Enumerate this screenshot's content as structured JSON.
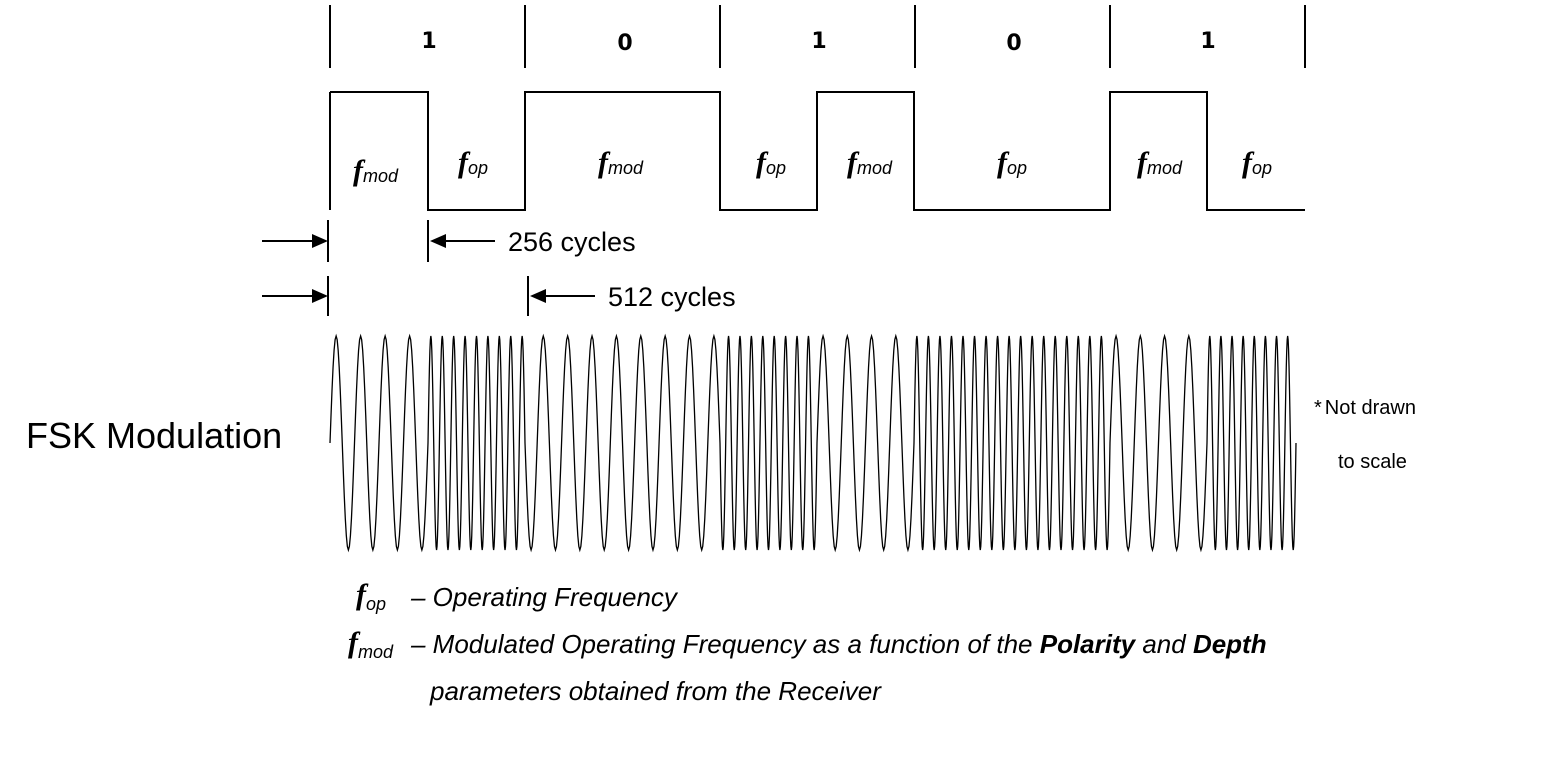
{
  "bits": [
    "1",
    "0",
    "1",
    "0",
    "1"
  ],
  "bit_sequence_levels": [
    1,
    1,
    0,
    1,
    0,
    1,
    0,
    0,
    1,
    0
  ],
  "segments": [
    {
      "f": "f",
      "sub": "mod"
    },
    {
      "f": "f",
      "sub": "op"
    },
    {
      "f": "f",
      "sub": "mod"
    },
    {
      "f": "f",
      "sub": "op"
    },
    {
      "f": "f",
      "sub": "mod"
    },
    {
      "f": "f",
      "sub": "op"
    },
    {
      "f": "f",
      "sub": "mod"
    },
    {
      "f": "f",
      "sub": "op"
    }
  ],
  "timing": {
    "short_label": "256 cycles",
    "long_label": "512 cycles"
  },
  "title": "FSK Modulation",
  "note": {
    "star": "*",
    "line1": "Not drawn",
    "line2": "to scale"
  },
  "legend": {
    "op": {
      "f": "f",
      "sub": "op",
      "text": "– Operating Frequency"
    },
    "mod": {
      "f": "f",
      "sub": "mod",
      "text_part1": "– Modulated Operating Frequency as a function of the ",
      "bold1": "Polarity",
      "text_part2": " and ",
      "bold2": "Depth",
      "line2": "parameters obtained from the Receiver"
    }
  }
}
